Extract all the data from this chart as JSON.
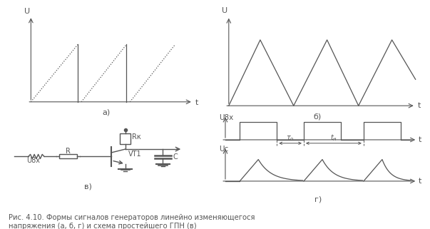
{
  "bg_color": "#ffffff",
  "line_color": "#555555",
  "title_text": "Рис. 4.10. Формы сигналов генераторов линейно изменяющегося\nнапряжения (а, б, г) и схема простейшего ГПН (в)",
  "panel_a_label": "а)",
  "panel_b_label": "б)",
  "panel_v_label": "в)",
  "panel_g_label": "г)",
  "U_label": "U",
  "t_label": "t",
  "Ubx_label": "U8х",
  "Uc_label": "Uc",
  "R_label": "R",
  "Rk_label": "Rк",
  "VT1_label": "VT1",
  "C_label": "C",
  "tau0_label": "τ₀",
  "taun_label": "tн"
}
